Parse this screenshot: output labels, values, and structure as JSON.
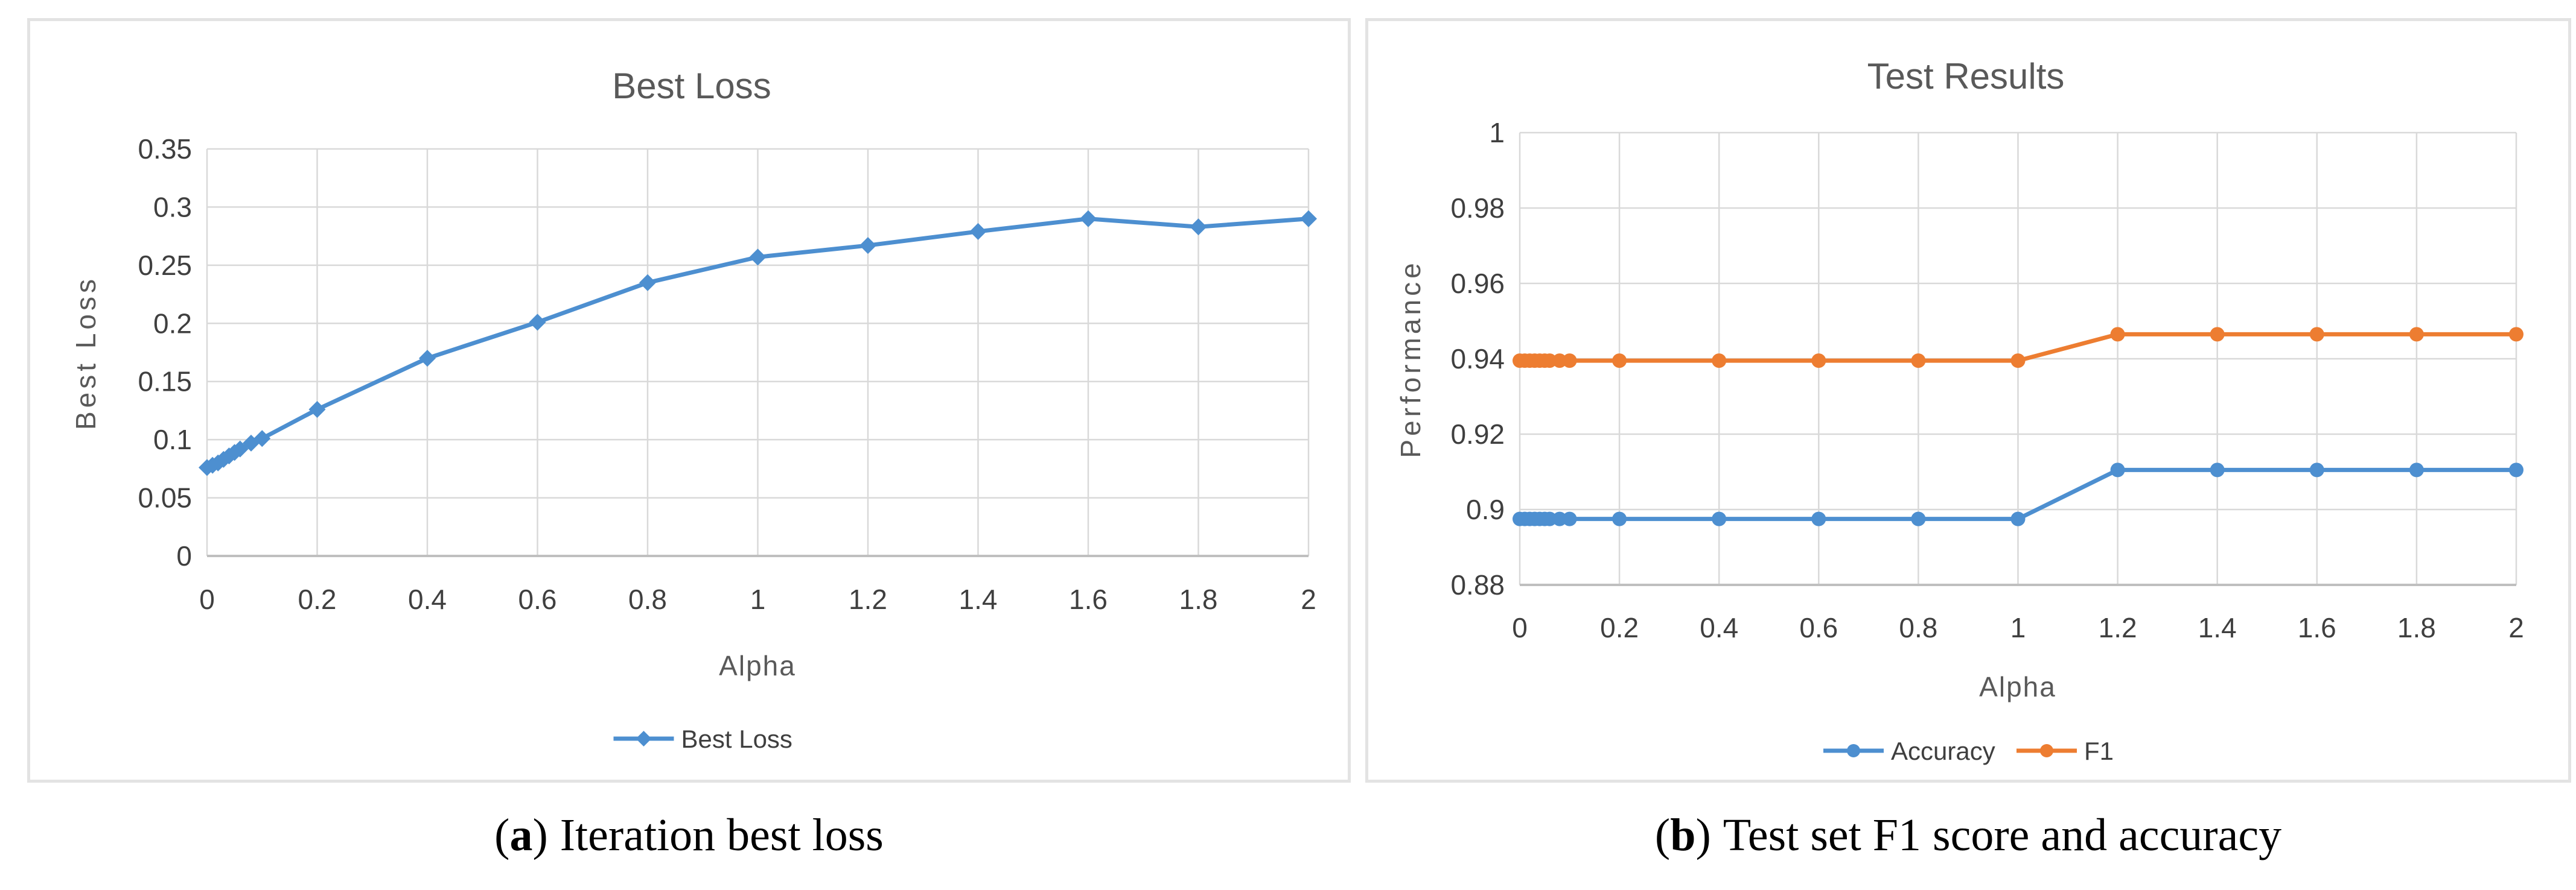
{
  "colors": {
    "blue": "#4D8FD0",
    "orange": "#ED7D31",
    "gridline": "#D9D9D9",
    "axis_line": "#BFBFBF",
    "tick_text": "#3F3F3F",
    "title_text": "#595959",
    "panel_border": "#E3E3E3"
  },
  "captions": {
    "a": {
      "open": "(",
      "letter": "a",
      "close": ")",
      "text": "Iteration best loss"
    },
    "b": {
      "open": "(",
      "letter": "b",
      "close": ")",
      "text": "Test set F1 score and accuracy"
    }
  },
  "chart_data": [
    {
      "type": "line",
      "title": "Best Loss",
      "xlabel": "Alpha",
      "ylabel": "Best Loss",
      "x_range": [
        0,
        2
      ],
      "y_range": [
        0,
        0.35
      ],
      "x_ticks": [
        0,
        0.2,
        0.4,
        0.6,
        0.8,
        1,
        1.2,
        1.4,
        1.6,
        1.8,
        2
      ],
      "x_tick_labels": [
        "0",
        "0.2",
        "0.4",
        "0.6",
        "0.8",
        "1",
        "1.2",
        "1.4",
        "1.6",
        "1.8",
        "2"
      ],
      "y_ticks": [
        0,
        0.05,
        0.1,
        0.15,
        0.2,
        0.25,
        0.3,
        0.35
      ],
      "y_tick_labels": [
        "0",
        "0.05",
        "0.1",
        "0.15",
        "0.2",
        "0.25",
        "0.3",
        "0.35"
      ],
      "grid": true,
      "legend_position": "bottom",
      "x": [
        0,
        0.01,
        0.02,
        0.03,
        0.04,
        0.05,
        0.06,
        0.08,
        0.1,
        0.2,
        0.4,
        0.6,
        0.8,
        1,
        1.2,
        1.4,
        1.6,
        1.8,
        2
      ],
      "series": [
        {
          "name": "Best Loss",
          "color_key": "blue",
          "marker": "diamond",
          "values": [
            0.076,
            0.078,
            0.08,
            0.083,
            0.086,
            0.089,
            0.092,
            0.097,
            0.101,
            0.126,
            0.17,
            0.201,
            0.235,
            0.257,
            0.267,
            0.279,
            0.29,
            0.283,
            0.29
          ]
        }
      ]
    },
    {
      "type": "line",
      "title": "Test Results",
      "xlabel": "Alpha",
      "ylabel": "Performance",
      "x_range": [
        0,
        2
      ],
      "y_range": [
        0.88,
        1
      ],
      "x_ticks": [
        0,
        0.2,
        0.4,
        0.6,
        0.8,
        1,
        1.2,
        1.4,
        1.6,
        1.8,
        2
      ],
      "x_tick_labels": [
        "0",
        "0.2",
        "0.4",
        "0.6",
        "0.8",
        "1",
        "1.2",
        "1.4",
        "1.6",
        "1.8",
        "2"
      ],
      "y_ticks": [
        0.88,
        0.9,
        0.92,
        0.94,
        0.96,
        0.98,
        1
      ],
      "y_tick_labels": [
        "0.88",
        "0.9",
        "0.92",
        "0.94",
        "0.96",
        "0.98",
        "1"
      ],
      "grid": true,
      "legend_position": "bottom",
      "x": [
        0,
        0.01,
        0.02,
        0.03,
        0.04,
        0.05,
        0.06,
        0.08,
        0.1,
        0.2,
        0.4,
        0.6,
        0.8,
        1,
        1.2,
        1.4,
        1.6,
        1.8,
        2
      ],
      "series": [
        {
          "name": "Accuracy",
          "color_key": "blue",
          "marker": "circle",
          "values": [
            0.8975,
            0.8975,
            0.8975,
            0.8975,
            0.8975,
            0.8975,
            0.8975,
            0.8975,
            0.8975,
            0.8975,
            0.8975,
            0.8975,
            0.8975,
            0.8975,
            0.9105,
            0.9105,
            0.9105,
            0.9105,
            0.9105
          ]
        },
        {
          "name": "F1",
          "color_key": "orange",
          "marker": "circle",
          "values": [
            0.9395,
            0.9395,
            0.9395,
            0.9395,
            0.9395,
            0.9395,
            0.9395,
            0.9395,
            0.9395,
            0.9395,
            0.9395,
            0.9395,
            0.9395,
            0.9395,
            0.9465,
            0.9465,
            0.9465,
            0.9465,
            0.9465
          ]
        }
      ]
    }
  ]
}
